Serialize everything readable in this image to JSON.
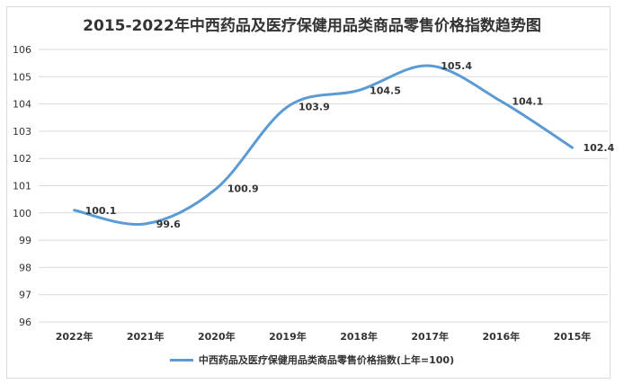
{
  "chart_data": {
    "type": "line",
    "title": "2015-2022年中西药品及医疗保健用品类商品零售价格指数趋势图",
    "categories": [
      "2022年",
      "2021年",
      "2020年",
      "2019年",
      "2018年",
      "2017年",
      "2016年",
      "2015年"
    ],
    "series": [
      {
        "name": "中西药品及医疗保健用品类商品零售价格指数(上年=100)",
        "values": [
          100.1,
          99.6,
          100.9,
          103.9,
          104.5,
          105.4,
          104.1,
          102.4
        ],
        "color": "#5b9bd5"
      }
    ],
    "ylim": [
      96,
      106
    ],
    "yticks": [
      96,
      97,
      98,
      99,
      100,
      101,
      102,
      103,
      104,
      105,
      106
    ],
    "grid": true,
    "smooth": true,
    "legend": "bottom",
    "xlabel": "",
    "ylabel": ""
  }
}
